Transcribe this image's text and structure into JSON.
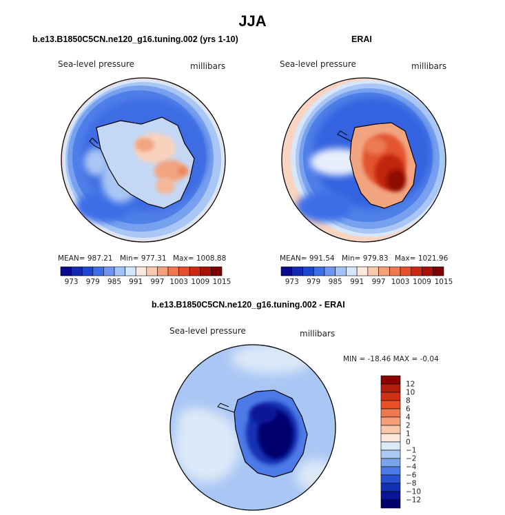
{
  "figure": {
    "season": "JJA",
    "panels": [
      {
        "title": "b.e13.B1850C5CN.ne120_g16.tuning.002 (yrs 1-10)",
        "variable": "Sea-level pressure",
        "units": "millibars",
        "mean_label": "MEAN= 987.21",
        "min_label": "Min= 977.31",
        "max_label": "Max= 1008.88"
      },
      {
        "title": "ERAI",
        "variable": "Sea-level pressure",
        "units": "millibars",
        "mean_label": "MEAN= 991.54",
        "min_label": "Min= 979.83",
        "max_label": "Max= 1021.96"
      },
      {
        "title": "b.e13.B1850C5CN.ne120_g16.tuning.002 - ERAI",
        "variable": "Sea-level pressure",
        "units": "millibars",
        "minmax_label": "MIN = -18.46 MAX =  -0.04"
      }
    ]
  },
  "chart_data": [
    {
      "type": "heatmap",
      "title": "b.e13.B1850C5CN.ne120_g16.tuning.002 (yrs 1-10)",
      "field": "Sea-level pressure",
      "units": "millibars",
      "projection": "south polar stereographic",
      "mean": 987.21,
      "min": 977.31,
      "max": 1008.88,
      "colorbar_ticks": [
        973,
        979,
        985,
        991,
        997,
        1003,
        1009,
        1015
      ],
      "colorbar_colors": [
        "#0a0a8c",
        "#1428b4",
        "#1e46d2",
        "#3c6ee6",
        "#6e96f0",
        "#a0c3fa",
        "#d2e6fc",
        "#fde8dc",
        "#fac8aa",
        "#f5a078",
        "#f07850",
        "#e6502d",
        "#cd2814",
        "#aa1008",
        "#7d0000"
      ]
    },
    {
      "type": "heatmap",
      "title": "ERAI",
      "field": "Sea-level pressure",
      "units": "millibars",
      "projection": "south polar stereographic",
      "mean": 991.54,
      "min": 979.83,
      "max": 1021.96,
      "colorbar_ticks": [
        973,
        979,
        985,
        991,
        997,
        1003,
        1009,
        1015
      ],
      "colorbar_colors": [
        "#0a0a8c",
        "#1428b4",
        "#1e46d2",
        "#3c6ee6",
        "#6e96f0",
        "#a0c3fa",
        "#d2e6fc",
        "#fde8dc",
        "#fac8aa",
        "#f5a078",
        "#f07850",
        "#e6502d",
        "#cd2814",
        "#aa1008",
        "#7d0000"
      ]
    },
    {
      "type": "heatmap",
      "title": "b.e13.B1850C5CN.ne120_g16.tuning.002 - ERAI",
      "field": "Sea-level pressure difference",
      "units": "millibars",
      "projection": "south polar stereographic",
      "min": -18.46,
      "max": -0.04,
      "colorbar_ticks": [
        "12",
        "10",
        "8",
        "6",
        "4",
        "2",
        "1",
        "0",
        "−1",
        "−2",
        "−4",
        "−6",
        "−8",
        "−10",
        "−12"
      ],
      "colorbar_colors": [
        "#8c0000",
        "#b41e0a",
        "#d23214",
        "#eb5028",
        "#f07850",
        "#f5a078",
        "#fac8aa",
        "#fde8dc",
        "#dceaf8",
        "#aac8f0",
        "#7ca4ec",
        "#4c7ae6",
        "#2850d2",
        "#1430b4",
        "#0a1496",
        "#00006e"
      ]
    }
  ]
}
